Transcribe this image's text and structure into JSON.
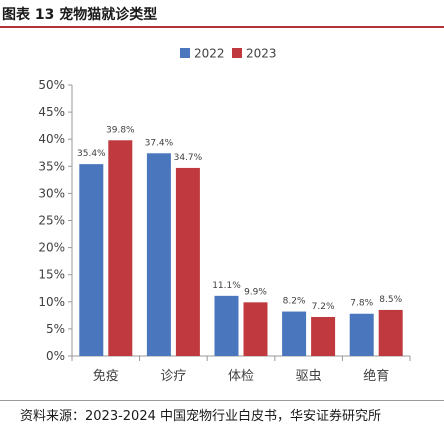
{
  "figure": {
    "title": "图表 13 宠物猫就诊类型",
    "source": "资料来源：2023-2024 中国宠物行业白皮书，华安证券研究所"
  },
  "colors": {
    "series_2022": "#4a76bd",
    "series_2023": "#c0393e",
    "axis": "#999999",
    "text": "#404040",
    "title_rule": "#b0323a"
  },
  "chart_data": {
    "type": "bar",
    "categories": [
      "免疫",
      "诊疗",
      "体检",
      "驱虫",
      "绝育"
    ],
    "series": [
      {
        "name": "2022",
        "values": [
          35.4,
          37.4,
          11.1,
          8.2,
          7.8
        ],
        "labels": [
          "35.4%",
          "37.4%",
          "11.1%",
          "8.2%",
          "7.8%"
        ]
      },
      {
        "name": "2023",
        "values": [
          39.8,
          34.7,
          9.9,
          7.2,
          8.5
        ],
        "labels": [
          "39.8%",
          "34.7%",
          "9.9%",
          "7.2%",
          "8.5%"
        ]
      }
    ],
    "ylim": [
      0,
      50
    ],
    "yticks": [
      "0%",
      "5%",
      "10%",
      "15%",
      "20%",
      "25%",
      "30%",
      "35%",
      "40%",
      "45%",
      "50%"
    ],
    "grid": false,
    "legend": "top-center"
  }
}
